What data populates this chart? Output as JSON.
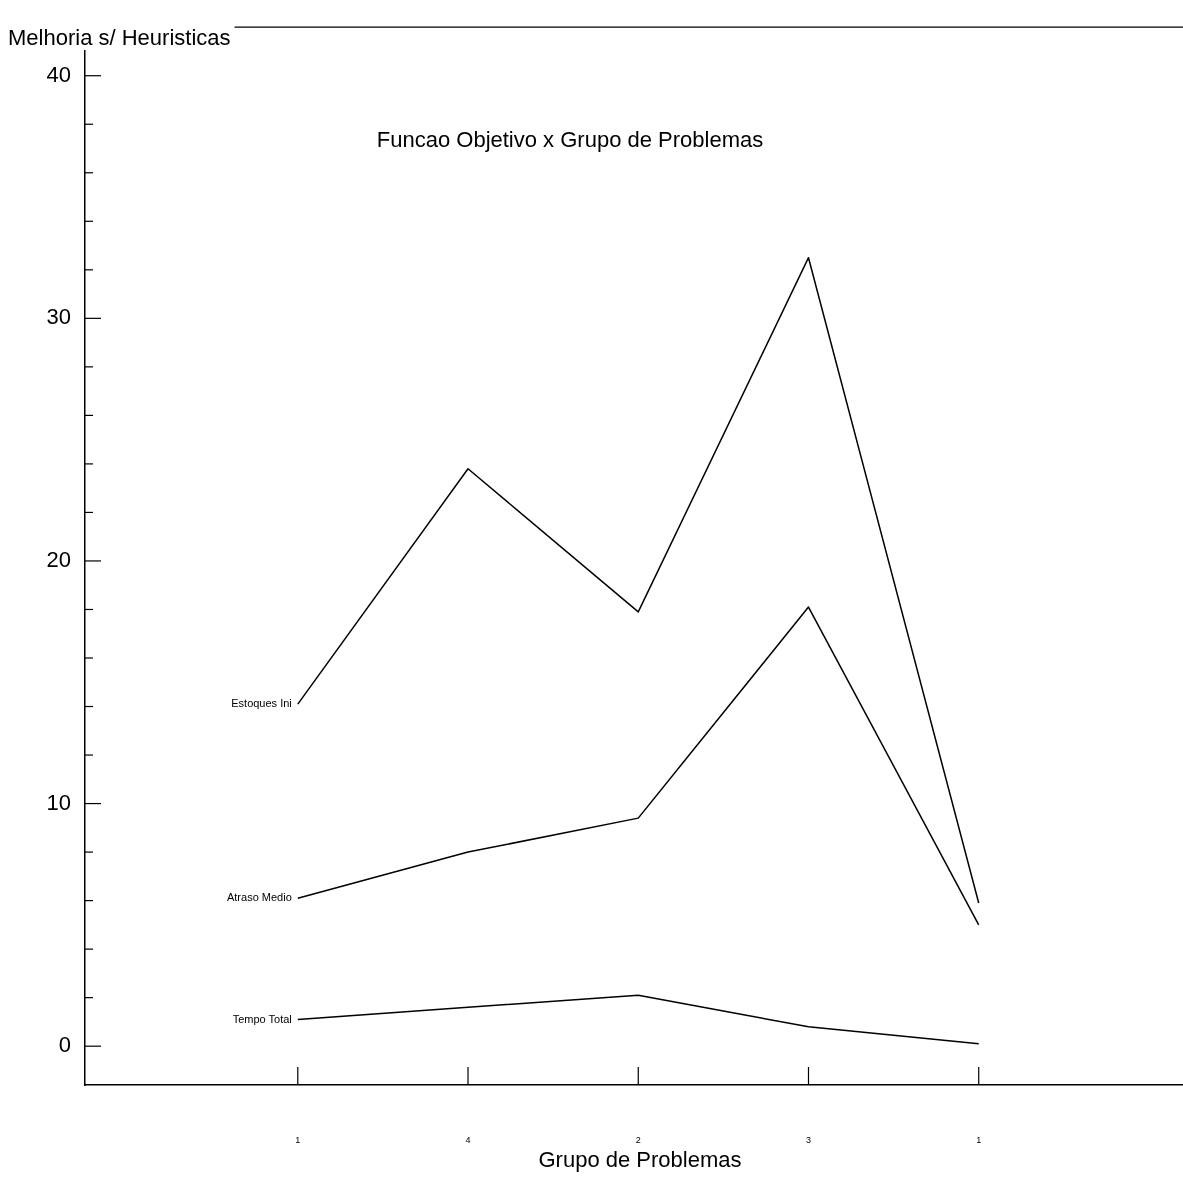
{
  "chart_data": {
    "type": "line",
    "title": "Funcao Objetivo x Grupo de Problemas",
    "xlabel": "Grupo de Problemas",
    "ylabel": "Melhoria s/ Heuristicas",
    "categories": [
      "1",
      "4",
      "2",
      "3",
      "1"
    ],
    "series": [
      {
        "name": "Estoques Ini",
        "color": "#000000",
        "values": [
          14.1,
          23.8,
          17.9,
          32.5,
          5.9
        ]
      },
      {
        "name": "Atraso Medio",
        "color": "#000000",
        "values": [
          6.1,
          8.0,
          9.4,
          18.1,
          5.0
        ]
      },
      {
        "name": "Tempo Total",
        "color": "#000000",
        "values": [
          1.1,
          1.6,
          2.1,
          0.8,
          0.1
        ]
      }
    ],
    "ylim": [
      -1.6,
      42
    ],
    "yticks": [
      0,
      {
        "value": 2,
        "label": null
      },
      {
        "value": 4,
        "label": null
      },
      {
        "value": 6,
        "label": null
      },
      {
        "value": 8,
        "label": null
      },
      10,
      {
        "value": 12,
        "label": null
      },
      {
        "value": 14,
        "label": null
      },
      {
        "value": 16,
        "label": null
      },
      {
        "value": 18,
        "label": null
      },
      20,
      {
        "value": 22,
        "label": null
      },
      {
        "value": 24,
        "label": null
      },
      {
        "value": 26,
        "label": null
      },
      {
        "value": 28,
        "label": null
      },
      30,
      {
        "value": 32,
        "label": null
      },
      {
        "value": 34,
        "label": null
      },
      {
        "value": 36,
        "label": null
      },
      {
        "value": 38,
        "label": null
      },
      40
    ],
    "grid": false,
    "legend": false,
    "marker": "none",
    "line_style": "solid"
  }
}
